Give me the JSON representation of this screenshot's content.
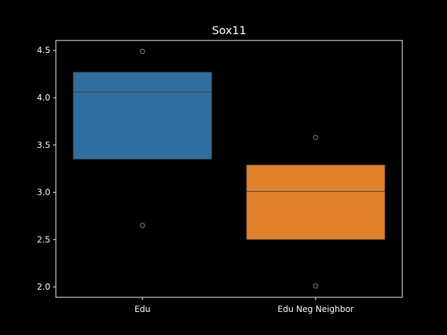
{
  "chart_data": {
    "type": "box",
    "title": "Sox11",
    "xlabel": "",
    "ylabel": "",
    "ylim": [
      1.89,
      4.605
    ],
    "yticks": [
      2.0,
      2.5,
      3.0,
      3.5,
      4.0,
      4.5
    ],
    "ytick_labels": [
      "2.0",
      "2.5",
      "3.0",
      "3.5",
      "4.0",
      "4.5"
    ],
    "categories": [
      "Edu",
      "Edu Neg Neighbor"
    ],
    "boxes": [
      {
        "category": "Edu",
        "q1": 3.35,
        "median": 4.06,
        "q3": 4.27,
        "outliers": [
          4.49,
          2.65
        ],
        "color": "#2f6f9f"
      },
      {
        "category": "Edu Neg Neighbor",
        "q1": 2.5,
        "median": 3.01,
        "q3": 3.29,
        "outliers": [
          3.58,
          2.01
        ],
        "color": "#e1812c"
      }
    ],
    "grid": false,
    "colors": {
      "background": "#000000",
      "axes": "#ffffff",
      "median": "#3a3a3a",
      "flier": "#8a8a8a"
    }
  }
}
